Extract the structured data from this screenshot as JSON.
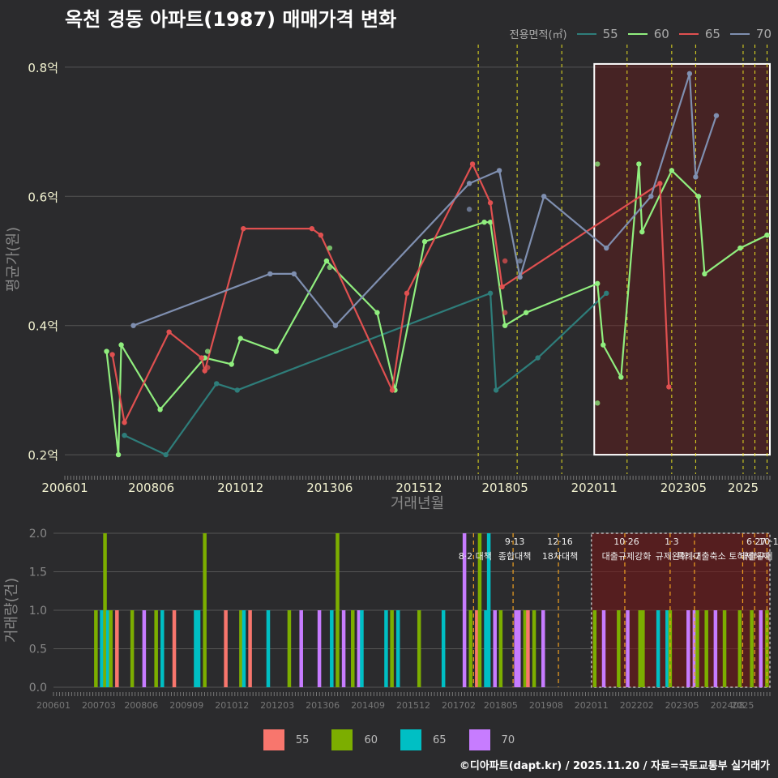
{
  "title": "옥천 경동 아파트(1987) 매매가격 변화",
  "legend": {
    "title": "전용면적(㎡)",
    "items": [
      {
        "label": "55",
        "color": "#2e7d7a",
        "bar_color": "#f8766d"
      },
      {
        "label": "60",
        "color": "#90ee7e",
        "bar_color": "#7cae00"
      },
      {
        "label": "65",
        "color": "#e05050",
        "bar_color": "#00bfc4"
      },
      {
        "label": "70",
        "color": "#7f8fb0",
        "bar_color": "#c77cff"
      }
    ]
  },
  "caption": "©디아파트(dapt.kr) / 2025.11.20 / 자료=국토교통부 실거래가",
  "chart_data": [
    {
      "type": "line",
      "ylabel": "평균가(원)",
      "xlabel": "거래년월",
      "x_range": [
        2006.0,
        2025.75
      ],
      "ylim": [
        0.17,
        0.835
      ],
      "yticks": [
        0.2,
        0.4,
        0.6,
        0.8
      ],
      "ytick_labels": [
        "0.2억",
        "0.4억",
        "0.6억",
        "0.8억"
      ],
      "xticks": [
        2006.0,
        2008.42,
        2010.92,
        2013.42,
        2015.92,
        2018.33,
        2020.83,
        2023.33,
        2025.0
      ],
      "xtick_labels": [
        "200601",
        "200806",
        "201012",
        "201306",
        "201512",
        "201805",
        "202011",
        "202305",
        "2025"
      ],
      "vlines": [
        2017.58,
        2018.67,
        2019.92,
        2021.75,
        2023.0,
        2023.67,
        2025.0,
        2025.33,
        2025.67
      ],
      "highlight_box": {
        "x": [
          2020.83,
          2025.75
        ],
        "y": [
          0.2,
          0.805
        ]
      },
      "series": [
        {
          "name": "55",
          "points": [
            [
              2007.67,
              0.23
            ],
            [
              2008.83,
              0.2
            ],
            [
              2010.25,
              0.31
            ],
            [
              2010.83,
              0.3
            ],
            [
              2017.92,
              0.45
            ],
            [
              2018.08,
              0.3
            ],
            [
              2019.25,
              0.35
            ],
            [
              2021.17,
              0.45
            ]
          ]
        },
        {
          "name": "60",
          "points": [
            [
              2007.17,
              0.36
            ],
            [
              2007.5,
              0.2
            ],
            [
              2007.58,
              0.37
            ],
            [
              2008.67,
              0.27
            ],
            [
              2009.92,
              0.35
            ],
            [
              2010.67,
              0.34
            ],
            [
              2010.92,
              0.38
            ],
            [
              2011.92,
              0.36
            ],
            [
              2013.33,
              0.5
            ],
            [
              2014.75,
              0.42
            ],
            [
              2015.25,
              0.3
            ],
            [
              2016.08,
              0.53
            ],
            [
              2017.75,
              0.56
            ],
            [
              2017.92,
              0.56
            ],
            [
              2018.33,
              0.4
            ],
            [
              2018.92,
              0.42
            ],
            [
              2020.92,
              0.465
            ],
            [
              2021.08,
              0.37
            ],
            [
              2021.58,
              0.32
            ],
            [
              2022.08,
              0.65
            ],
            [
              2022.17,
              0.545
            ],
            [
              2023.0,
              0.64
            ],
            [
              2023.75,
              0.6
            ],
            [
              2023.92,
              0.48
            ],
            [
              2024.92,
              0.52
            ],
            [
              2025.67,
              0.54
            ]
          ]
        },
        {
          "name": "65",
          "points": [
            [
              2007.33,
              0.355
            ],
            [
              2007.67,
              0.25
            ],
            [
              2008.92,
              0.39
            ],
            [
              2009.83,
              0.35
            ],
            [
              2009.92,
              0.33
            ],
            [
              2011.0,
              0.55
            ],
            [
              2012.92,
              0.55
            ],
            [
              2013.17,
              0.54
            ],
            [
              2015.17,
              0.3
            ],
            [
              2015.58,
              0.45
            ],
            [
              2017.42,
              0.65
            ],
            [
              2017.92,
              0.59
            ],
            [
              2018.25,
              0.46
            ],
            [
              2022.67,
              0.62
            ],
            [
              2022.92,
              0.305
            ]
          ]
        },
        {
          "name": "70",
          "points": [
            [
              2007.92,
              0.4
            ],
            [
              2011.75,
              0.48
            ],
            [
              2012.42,
              0.48
            ],
            [
              2013.58,
              0.4
            ],
            [
              2017.33,
              0.62
            ],
            [
              2018.17,
              0.64
            ],
            [
              2018.75,
              0.475
            ],
            [
              2019.42,
              0.6
            ],
            [
              2021.17,
              0.52
            ],
            [
              2022.42,
              0.6
            ],
            [
              2023.5,
              0.79
            ],
            [
              2023.67,
              0.63
            ],
            [
              2024.25,
              0.725
            ]
          ]
        }
      ],
      "extra_points": [
        {
          "name": "60",
          "points": [
            [
              2010.0,
              0.36
            ],
            [
              2013.42,
              0.49
            ],
            [
              2013.42,
              0.52
            ],
            [
              2020.92,
              0.28
            ],
            [
              2020.92,
              0.65
            ],
            [
              2024.92,
              0.52
            ],
            [
              2025.67,
              0.54
            ]
          ]
        },
        {
          "name": "65",
          "points": [
            [
              2018.33,
              0.5
            ],
            [
              2018.33,
              0.42
            ],
            [
              2010.0,
              0.335
            ]
          ]
        },
        {
          "name": "70",
          "points": [
            [
              2017.33,
              0.58
            ],
            [
              2018.75,
              0.5
            ]
          ]
        }
      ]
    },
    {
      "type": "bar",
      "ylabel": "거래량(건)",
      "x_range": [
        2006.0,
        2025.75
      ],
      "ylim": [
        0,
        2.0
      ],
      "yticks": [
        0,
        0.5,
        1.0,
        1.5,
        2.0
      ],
      "ytick_labels": [
        "0.0",
        "0.5",
        "1.0",
        "1.5",
        "2.0"
      ],
      "xticks": [
        2006.0,
        2007.25,
        2008.42,
        2009.67,
        2010.92,
        2012.17,
        2013.42,
        2014.67,
        2015.92,
        2017.17,
        2018.33,
        2019.58,
        2020.83,
        2022.08,
        2023.33,
        2024.58,
        2025.0
      ],
      "xtick_labels": [
        "200601",
        "200703",
        "200806",
        "200909",
        "201012",
        "201203",
        "201306",
        "201409",
        "201512",
        "201702",
        "201805",
        "201908",
        "202011",
        "202202",
        "202305",
        "202408",
        "2025"
      ],
      "bars": [
        {
          "x": 2007.17,
          "h": 1,
          "s": "60"
        },
        {
          "x": 2007.33,
          "h": 1,
          "s": "65"
        },
        {
          "x": 2007.42,
          "h": 2,
          "s": "60"
        },
        {
          "x": 2007.5,
          "h": 1,
          "s": "65"
        },
        {
          "x": 2007.58,
          "h": 1,
          "s": "60"
        },
        {
          "x": 2007.75,
          "h": 1,
          "s": "55"
        },
        {
          "x": 2008.17,
          "h": 1,
          "s": "60"
        },
        {
          "x": 2008.5,
          "h": 1,
          "s": "70"
        },
        {
          "x": 2008.83,
          "h": 1,
          "s": "60"
        },
        {
          "x": 2009.0,
          "h": 1,
          "s": "65"
        },
        {
          "x": 2009.33,
          "h": 1,
          "s": "55"
        },
        {
          "x": 2009.92,
          "h": 1,
          "s": "65"
        },
        {
          "x": 2010.0,
          "h": 1,
          "s": "65"
        },
        {
          "x": 2010.17,
          "h": 2,
          "s": "60"
        },
        {
          "x": 2010.75,
          "h": 1,
          "s": "55"
        },
        {
          "x": 2011.17,
          "h": 1,
          "s": "60"
        },
        {
          "x": 2011.25,
          "h": 1,
          "s": "65"
        },
        {
          "x": 2011.42,
          "h": 1,
          "s": "55"
        },
        {
          "x": 2011.92,
          "h": 1,
          "s": "65"
        },
        {
          "x": 2012.5,
          "h": 1,
          "s": "60"
        },
        {
          "x": 2012.83,
          "h": 1,
          "s": "70"
        },
        {
          "x": 2013.33,
          "h": 1,
          "s": "70"
        },
        {
          "x": 2013.67,
          "h": 1,
          "s": "65"
        },
        {
          "x": 2013.83,
          "h": 2,
          "s": "60"
        },
        {
          "x": 2014.0,
          "h": 1,
          "s": "70"
        },
        {
          "x": 2014.25,
          "h": 1,
          "s": "60"
        },
        {
          "x": 2014.42,
          "h": 1,
          "s": "70"
        },
        {
          "x": 2014.5,
          "h": 1,
          "s": "65"
        },
        {
          "x": 2015.17,
          "h": 1,
          "s": "65"
        },
        {
          "x": 2015.33,
          "h": 1,
          "s": "60"
        },
        {
          "x": 2015.5,
          "h": 1,
          "s": "65"
        },
        {
          "x": 2016.08,
          "h": 1,
          "s": "60"
        },
        {
          "x": 2016.75,
          "h": 1,
          "s": "65"
        },
        {
          "x": 2017.33,
          "h": 2,
          "s": "70"
        },
        {
          "x": 2017.5,
          "h": 1,
          "s": "60"
        },
        {
          "x": 2017.67,
          "h": 1,
          "s": "55"
        },
        {
          "x": 2017.75,
          "h": 2,
          "s": "60"
        },
        {
          "x": 2017.92,
          "h": 1,
          "s": "65"
        },
        {
          "x": 2018.0,
          "h": 2,
          "s": "65"
        },
        {
          "x": 2018.17,
          "h": 1,
          "s": "70"
        },
        {
          "x": 2018.33,
          "h": 1,
          "s": "60"
        },
        {
          "x": 2018.75,
          "h": 1,
          "s": "70"
        },
        {
          "x": 2018.83,
          "h": 1,
          "s": "70"
        },
        {
          "x": 2019.0,
          "h": 1,
          "s": "60"
        },
        {
          "x": 2019.08,
          "h": 1,
          "s": "55"
        },
        {
          "x": 2019.25,
          "h": 1,
          "s": "60"
        },
        {
          "x": 2019.5,
          "h": 1,
          "s": "70"
        },
        {
          "x": 2020.92,
          "h": 1,
          "s": "60"
        },
        {
          "x": 2021.17,
          "h": 1,
          "s": "70"
        },
        {
          "x": 2021.58,
          "h": 1,
          "s": "60"
        },
        {
          "x": 2021.83,
          "h": 1,
          "s": "70"
        },
        {
          "x": 2022.17,
          "h": 1,
          "s": "60"
        },
        {
          "x": 2022.25,
          "h": 1,
          "s": "60"
        },
        {
          "x": 2022.67,
          "h": 1,
          "s": "65"
        },
        {
          "x": 2022.92,
          "h": 1,
          "s": "65"
        },
        {
          "x": 2023.0,
          "h": 1,
          "s": "60"
        },
        {
          "x": 2023.5,
          "h": 1,
          "s": "70"
        },
        {
          "x": 2023.67,
          "h": 1,
          "s": "70"
        },
        {
          "x": 2023.75,
          "h": 1,
          "s": "60"
        },
        {
          "x": 2024.0,
          "h": 1,
          "s": "60"
        },
        {
          "x": 2024.25,
          "h": 1,
          "s": "70"
        },
        {
          "x": 2024.5,
          "h": 1,
          "s": "60"
        },
        {
          "x": 2024.92,
          "h": 1,
          "s": "60"
        },
        {
          "x": 2025.25,
          "h": 1,
          "s": "60"
        },
        {
          "x": 2025.5,
          "h": 1,
          "s": "70"
        },
        {
          "x": 2025.67,
          "h": 1,
          "s": "60"
        }
      ],
      "vlines": [
        2017.58,
        2018.67,
        2019.92,
        2021.75,
        2023.0,
        2023.67,
        2025.0,
        2025.33,
        2025.67
      ],
      "highlight_box": {
        "x": [
          2020.83,
          2025.75
        ],
        "y": [
          0,
          2.0
        ]
      },
      "annotations": [
        {
          "x": 2017.58,
          "line1": "",
          "line2": "8·2 대책"
        },
        {
          "x": 2018.67,
          "line1": "9·13",
          "line2": "종합대책"
        },
        {
          "x": 2019.92,
          "line1": "12·16",
          "line2": "18차대책"
        },
        {
          "x": 2021.75,
          "line1": "10·26",
          "line2": "대출규제강화"
        },
        {
          "x": 2023.0,
          "line1": "1·3",
          "line2": "규제완화"
        },
        {
          "x": 2023.67,
          "line1": "",
          "line2": "·7"
        },
        {
          "x": 2024.42,
          "line1": "",
          "line2": "특례대출축소 토허제해제"
        },
        {
          "x": 2025.33,
          "line1": "6·27",
          "line2": "대출규제"
        },
        {
          "x": 2025.67,
          "line1": "10·1",
          "line2": ""
        }
      ]
    }
  ]
}
